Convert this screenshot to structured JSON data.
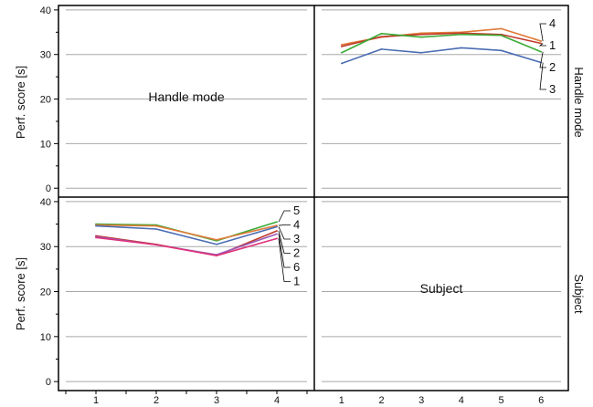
{
  "chart_data": {
    "type": "line",
    "ylabel": "Perf. score [s]",
    "yticks": [
      0,
      10,
      20,
      30,
      40
    ],
    "ylim": [
      -2,
      41
    ],
    "grid": true,
    "row_labels": [
      "Handle mode",
      "Subject"
    ],
    "panels": [
      {
        "position": "upper-left",
        "label": "Handle mode"
      },
      {
        "position": "upper-right",
        "x": [
          1,
          2,
          3,
          4,
          5,
          6
        ],
        "xticks": [
          "1",
          "2",
          "3",
          "4",
          "5",
          "6"
        ],
        "series": [
          {
            "name": "1",
            "color": "#c0392b",
            "values": [
              31.8,
              34.0,
              34.5,
              34.8,
              34.5,
              32.5
            ]
          },
          {
            "name": "2",
            "color": "#3aaa35",
            "values": [
              30.4,
              34.7,
              33.9,
              34.5,
              34.3,
              30.6
            ]
          },
          {
            "name": "3",
            "color": "#4a6cb3",
            "values": [
              28.0,
              31.2,
              30.4,
              31.5,
              30.9,
              28.2
            ]
          },
          {
            "name": "4",
            "color": "#e07b39",
            "values": [
              32.2,
              33.9,
              34.8,
              35.0,
              35.8,
              33.0
            ]
          }
        ]
      },
      {
        "position": "lower-left",
        "x": [
          1,
          2,
          3,
          4
        ],
        "xticks": [
          "1",
          "2",
          "3",
          "4"
        ],
        "series": [
          {
            "name": "5",
            "color": "#3aaa35",
            "values": [
              35.0,
              34.8,
              31.3,
              35.5
            ]
          },
          {
            "name": "4",
            "color": "#e07b39",
            "values": [
              34.8,
              34.6,
              31.5,
              34.7
            ]
          },
          {
            "name": "3",
            "color": "#4a6cb3",
            "values": [
              34.6,
              33.9,
              30.5,
              34.4
            ]
          },
          {
            "name": "2",
            "color": "#c0392b",
            "values": [
              32.4,
              30.5,
              28.0,
              33.5
            ]
          },
          {
            "name": "6",
            "color": "#9b59b6",
            "values": [
              32.2,
              30.4,
              28.2,
              32.8
            ]
          },
          {
            "name": "1",
            "color": "#e0327a",
            "values": [
              32.0,
              30.4,
              28.0,
              31.8
            ]
          }
        ]
      },
      {
        "position": "lower-right",
        "label": "Subject"
      }
    ]
  }
}
